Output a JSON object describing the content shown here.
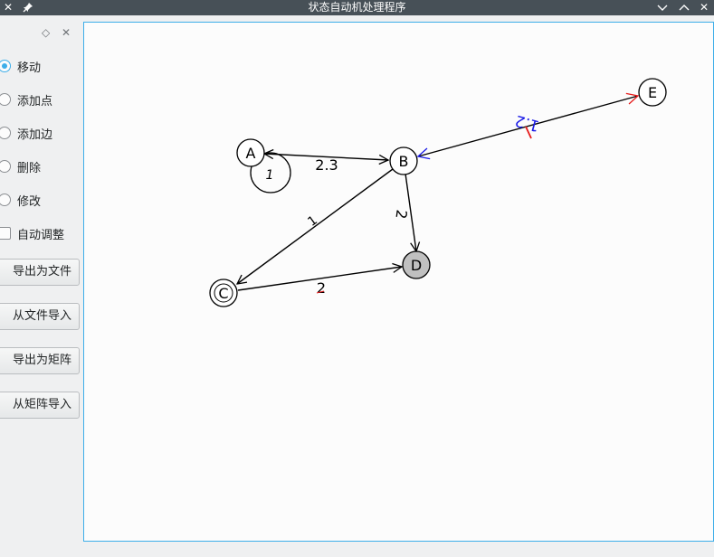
{
  "window": {
    "title": "状态自动机处理程序",
    "close_glyph": "✕",
    "pin_glyph": "📌",
    "min_glyph": "⌄",
    "max_glyph": "⌃",
    "win_close_glyph": "✕"
  },
  "dock": {
    "float_glyph": "◇",
    "close_glyph": "✕"
  },
  "modes": [
    {
      "label": "移动",
      "checked": true
    },
    {
      "label": "添加点",
      "checked": false
    },
    {
      "label": "添加边",
      "checked": false
    },
    {
      "label": "删除",
      "checked": false
    },
    {
      "label": "修改",
      "checked": false
    }
  ],
  "auto_adjust": {
    "label": "自动调整",
    "checked": false
  },
  "buttons": {
    "export_file": "导出为文件",
    "import_file": "从文件导入",
    "export_matrix": "导出为矩阵",
    "import_matrix": "从矩阵导入"
  },
  "graph": {
    "nodes": [
      {
        "id": "A",
        "label": "A",
        "style": "normal"
      },
      {
        "id": "B",
        "label": "B",
        "style": "normal"
      },
      {
        "id": "C",
        "label": "C",
        "style": "accepting"
      },
      {
        "id": "D",
        "label": "D",
        "style": "filled"
      },
      {
        "id": "E",
        "label": "E",
        "style": "normal"
      }
    ],
    "edges": [
      {
        "from": "A",
        "to": "A",
        "label": "1",
        "kind": "self-loop"
      },
      {
        "from": "A",
        "to": "B",
        "label": "2.3",
        "kind": "bidirectional"
      },
      {
        "from": "B",
        "to": "E",
        "label": "1.2",
        "kind": "bidirectional",
        "highlight": true
      },
      {
        "from": "B",
        "to": "C",
        "label": "1",
        "kind": "directed"
      },
      {
        "from": "B",
        "to": "D",
        "label": "2",
        "kind": "directed"
      },
      {
        "from": "C",
        "to": "D",
        "label": "2",
        "kind": "directed"
      }
    ],
    "colors": {
      "edge": "#000000",
      "highlight_blue": "#1a1ae6",
      "highlight_red": "#e61a1a",
      "node_fill": "#ffffff",
      "filled_node": "#c0c0c0",
      "frame": "#3daee9"
    }
  }
}
